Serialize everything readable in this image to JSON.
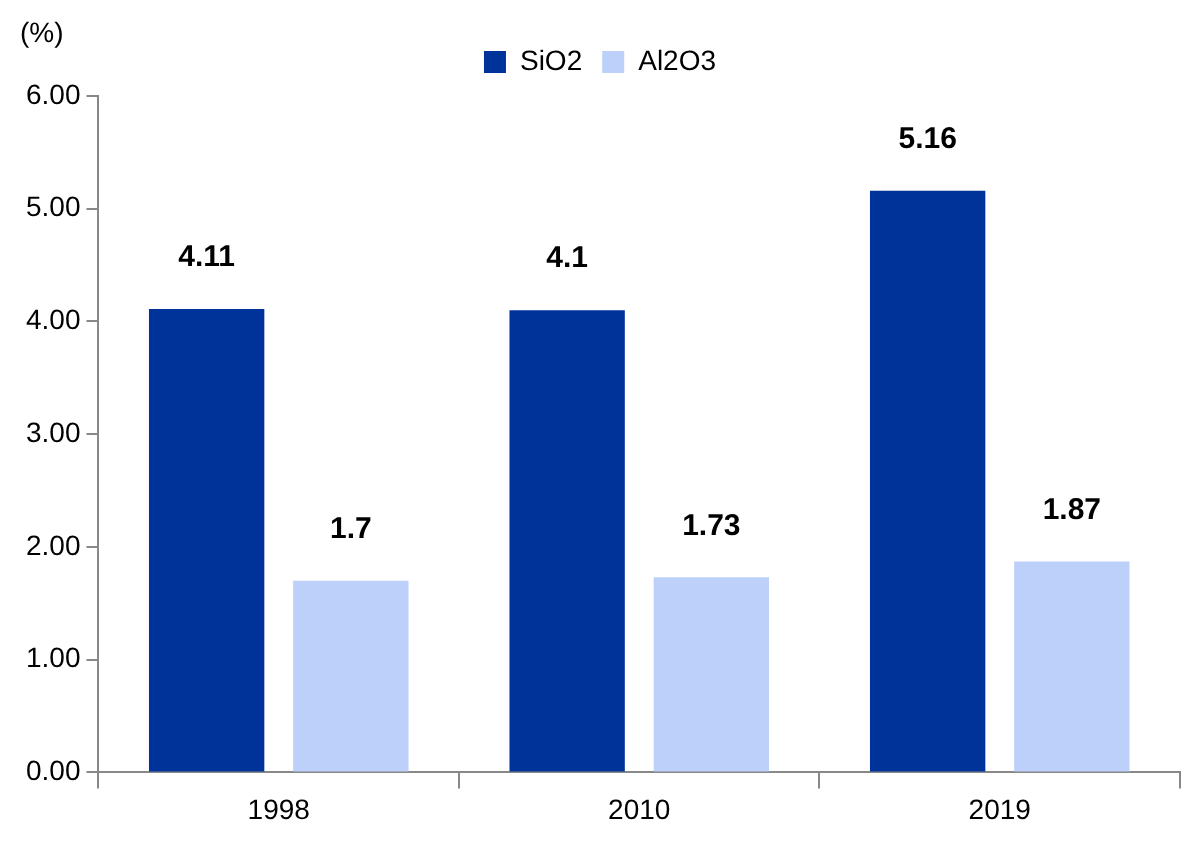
{
  "chart_data": {
    "type": "bar",
    "ylabel": "(%)",
    "categories": [
      "1998",
      "2010",
      "2019"
    ],
    "series": [
      {
        "name": "SiO2",
        "color": "#003399",
        "values": [
          4.11,
          4.1,
          5.16
        ]
      },
      {
        "name": "Al2O3",
        "color": "#bdd0fa",
        "values": [
          1.7,
          1.73,
          1.87
        ]
      }
    ],
    "ylim": [
      0,
      6
    ],
    "yticks": [
      {
        "value": 0,
        "label": "0.00"
      },
      {
        "value": 1,
        "label": "1.00"
      },
      {
        "value": 2,
        "label": "2.00"
      },
      {
        "value": 3,
        "label": "3.00"
      },
      {
        "value": 4,
        "label": "4.00"
      },
      {
        "value": 5,
        "label": "5.00"
      },
      {
        "value": 6,
        "label": "6.00"
      }
    ],
    "data_labels": true,
    "legend": "top",
    "grid": false
  }
}
